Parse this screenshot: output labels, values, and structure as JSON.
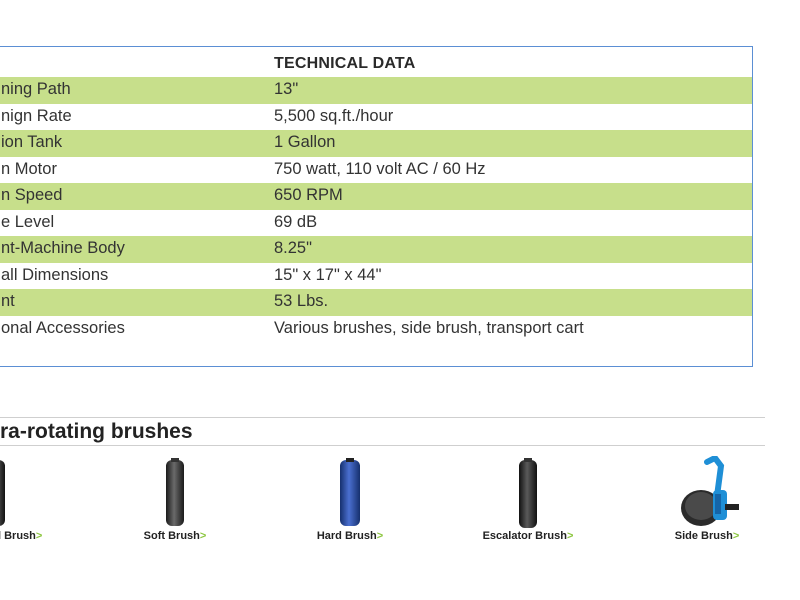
{
  "technical": {
    "header": "TECHNICAL DATA",
    "rows": [
      {
        "label": "ning Path",
        "value": "13\""
      },
      {
        "label": "nign Rate",
        "value": "5,500 sq.ft./hour"
      },
      {
        "label": "ion Tank",
        "value": "1 Gallon"
      },
      {
        "label": "n Motor",
        "value": "750 watt, 110 volt AC / 60 Hz"
      },
      {
        "label": "n Speed",
        "value": "650 RPM"
      },
      {
        "label": "e Level",
        "value": "69 dB"
      },
      {
        "label": "nt-Machine Body",
        "value": "8.25\""
      },
      {
        "label": "all Dimensions",
        "value": "15\" x 17\" x 44\""
      },
      {
        "label": "nt",
        "value": "53 Lbs."
      },
      {
        "label": "onal Accessories",
        "value": "Various brushes, side brush, transport cart"
      }
    ]
  },
  "brushes": {
    "heading": "ra-rotating brushes",
    "items": [
      {
        "label": "l Brush",
        "arrow": ">"
      },
      {
        "label": "Soft Brush",
        "arrow": ">"
      },
      {
        "label": "Hard Brush",
        "arrow": ">"
      },
      {
        "label": "Escalator Brush",
        "arrow": ">"
      },
      {
        "label": "Side Brush",
        "arrow": ">"
      }
    ]
  },
  "colors": {
    "row_green": "#c7df8b",
    "box_border": "#5b8fd4",
    "arrow_green": "#8cc63f",
    "hard_brush_blue": "#2d4fa0"
  }
}
